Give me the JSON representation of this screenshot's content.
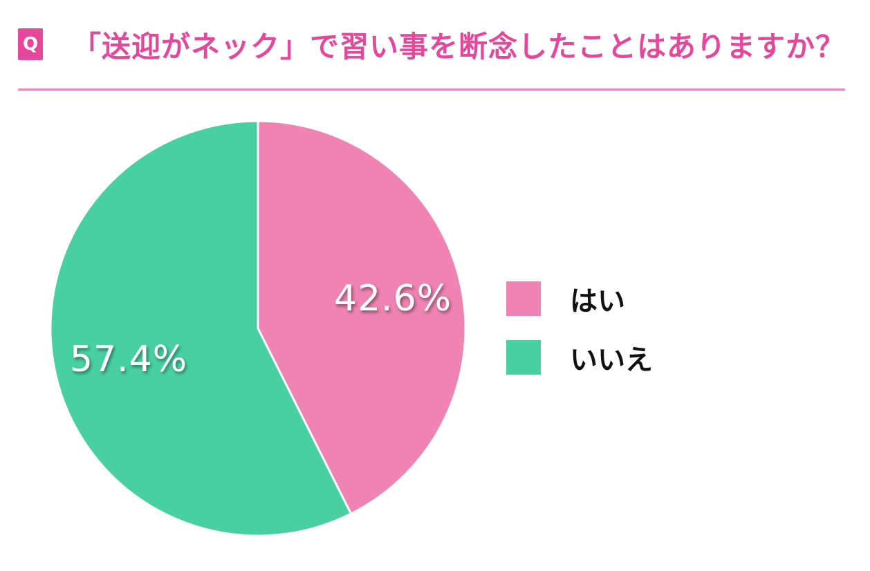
{
  "header": {
    "badge": "Q",
    "title": "「送迎がネック」で習い事を断念したことはありますか？"
  },
  "colors": {
    "accent": "#e3489b",
    "divider": "#ee86b4",
    "yes": "#ef83b2",
    "no": "#48d0a2"
  },
  "chart_data": {
    "type": "pie",
    "title": "「送迎がネック」で習い事を断念したことはありますか？",
    "slices": [
      {
        "label": "はい",
        "value": 42.6,
        "display": "42.6%",
        "color": "#ef83b2"
      },
      {
        "label": "いいえ",
        "value": 57.4,
        "display": "57.4%",
        "color": "#48d0a2"
      }
    ],
    "start": "12 o'clock",
    "direction": "clockwise",
    "legend_position": "right"
  }
}
